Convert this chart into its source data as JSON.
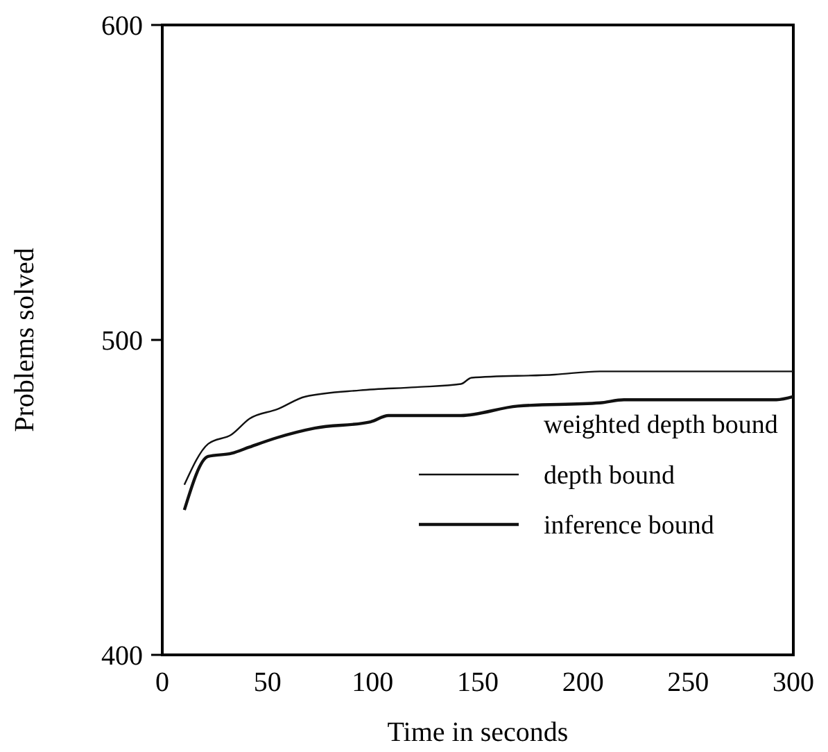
{
  "chart_data": {
    "type": "line",
    "xlabel": "Time in seconds",
    "ylabel": "Problems solved",
    "xlim": [
      0,
      300
    ],
    "xticks": [
      0,
      50,
      100,
      150,
      200,
      250,
      300
    ],
    "ylim": [
      400,
      600
    ],
    "yticks": [
      400,
      500,
      600
    ],
    "grid": false,
    "legend": "bottom right",
    "annotations": [
      "weighted depth bound"
    ],
    "series": [
      {
        "name": "depth bound",
        "color": "#111111",
        "x": [
          10.5,
          21.8,
          33,
          41.5,
          54.7,
          68,
          94,
          120.6,
          142,
          147,
          186.5,
          208,
          300
        ],
        "values": [
          454,
          467,
          470,
          475,
          478,
          482,
          484,
          485,
          486,
          488,
          489,
          490,
          490
        ]
      },
      {
        "name": "inference bound",
        "color": "#111111",
        "x": [
          10.5,
          21.8,
          33,
          41.5,
          54.7,
          72.5,
          99,
          107.5,
          142,
          169,
          208,
          219.5,
          292,
          300
        ],
        "values": [
          446,
          463,
          464,
          466,
          469,
          472,
          474,
          476,
          476,
          479,
          480,
          481,
          481,
          482
        ]
      }
    ]
  }
}
